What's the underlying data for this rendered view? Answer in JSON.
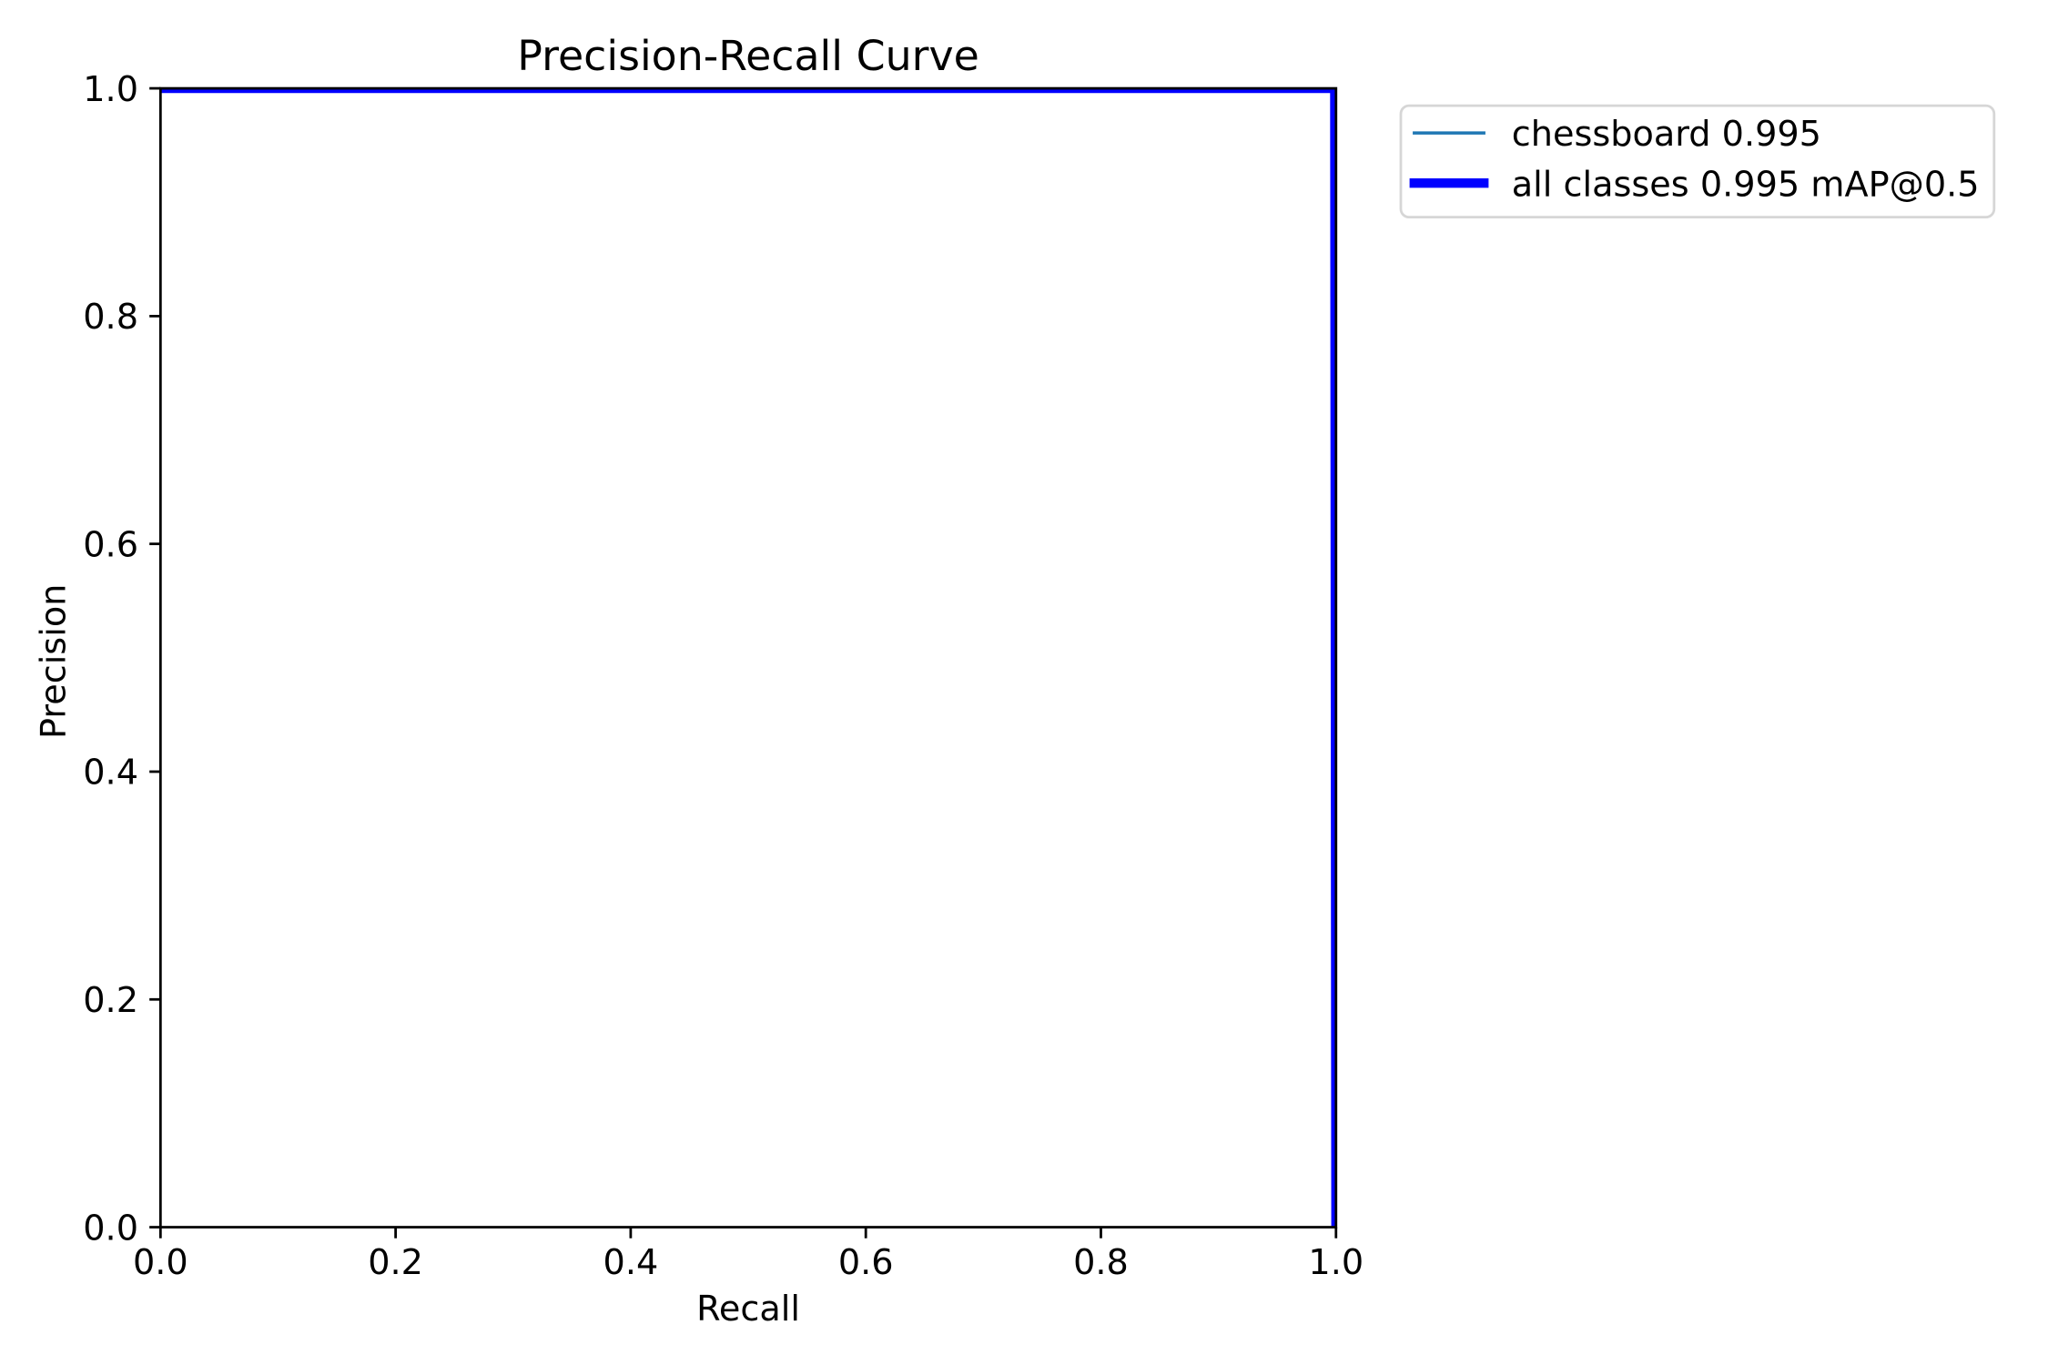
{
  "figure": {
    "background": "#ffffff"
  },
  "chart_data": {
    "type": "line",
    "title": "Precision-Recall Curve",
    "xlabel": "Recall",
    "ylabel": "Precision",
    "xlim": [
      0,
      1
    ],
    "ylim": [
      0,
      1
    ],
    "x_ticks": [
      "0.0",
      "0.2",
      "0.4",
      "0.6",
      "0.8",
      "1.0"
    ],
    "y_ticks": [
      "0.0",
      "0.2",
      "0.4",
      "0.6",
      "0.8",
      "1.0"
    ],
    "grid": false,
    "legend": {
      "position": "outside upper right",
      "entries": [
        "chessboard 0.995",
        "all classes 0.995 mAP@0.5"
      ]
    },
    "series": [
      {
        "name": "chessboard 0.995",
        "class": "chessboard",
        "ap50": 0.995,
        "color": "#1f77b4",
        "linewidth_pt": 1,
        "x": [
          0.0,
          0.999,
          1.0
        ],
        "y": [
          1.0,
          1.0,
          0.0
        ]
      },
      {
        "name": "all classes 0.995 mAP@0.5",
        "class": "all classes",
        "map50": 0.995,
        "color": "#0000ff",
        "linewidth_pt": 3,
        "x": [
          0.0,
          0.999,
          1.0
        ],
        "y": [
          1.0,
          1.0,
          0.0
        ]
      }
    ],
    "colors": {
      "axes": "#000000",
      "text": "#000000",
      "legend_border": "#cccccc",
      "legend_face": "#ffffff"
    }
  }
}
